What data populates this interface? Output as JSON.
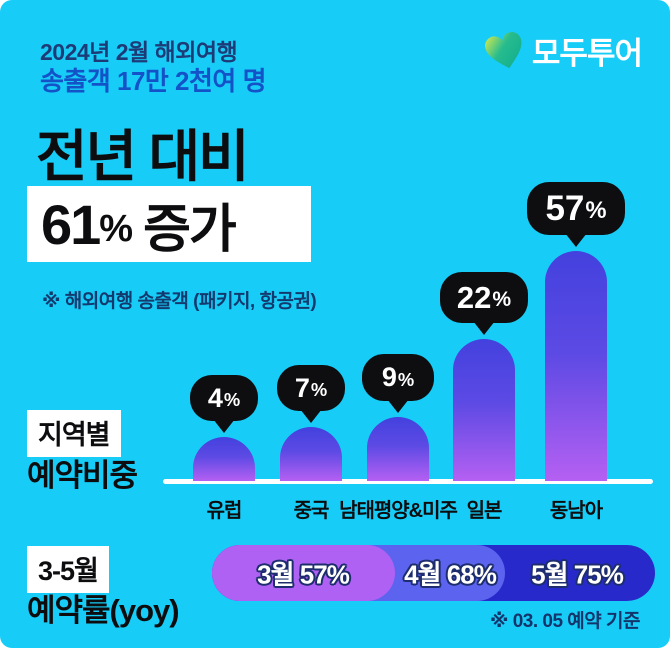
{
  "canvas": {
    "background": "#17cdf8"
  },
  "header": {
    "date_line": "2024년 2월 해외여행",
    "stat_line": "송출객 17만 2천여 명",
    "brand": "모두투어",
    "brand_heart_colors": [
      "#dcec4e",
      "#0caa8c"
    ]
  },
  "headline": {
    "top": "전년 대비",
    "value": "61",
    "unit": "%",
    "suffix": "증가",
    "footnote": "※ 해외여행 송출객 (패키지, 항공권)"
  },
  "region_section": {
    "badge": "지역별",
    "title": "예약비중"
  },
  "chart_data": [
    {
      "type": "bar",
      "title": "지역별 예약비중",
      "categories": [
        "유럽",
        "중국",
        "남태평양&미주",
        "일본",
        "동남아"
      ],
      "values": [
        4,
        7,
        9,
        22,
        57
      ],
      "unit": "%",
      "value_label_style": "black-speech-bubbles",
      "bar_gradient": [
        "#4341de",
        "#b560f2"
      ],
      "bubble_color": "#0e0e10",
      "baseline_color": "#ffffff",
      "grid": false,
      "legend": false
    },
    {
      "type": "bar",
      "title": "3-5월 예약률(yoy)",
      "categories": [
        "3월",
        "4월",
        "5월"
      ],
      "values": [
        57,
        68,
        75
      ],
      "unit": "%",
      "labels": [
        "3월 57%",
        "4월 68%",
        "5월 75%"
      ],
      "colors": [
        "#ae61f3",
        "#5b63ef",
        "#2729cb"
      ],
      "layout": "nested-horizontal-pill"
    }
  ],
  "booking_section": {
    "badge": "3-5월",
    "title": "예약률(yoy)",
    "segments": [
      {
        "label": "3월 57%",
        "color": "#ae61f3"
      },
      {
        "label": "4월 68%",
        "color": "#5b63ef"
      },
      {
        "label": "5월 75%",
        "color": "#2729cb"
      }
    ],
    "footnote": "※ 03. 05 예약 기준"
  }
}
